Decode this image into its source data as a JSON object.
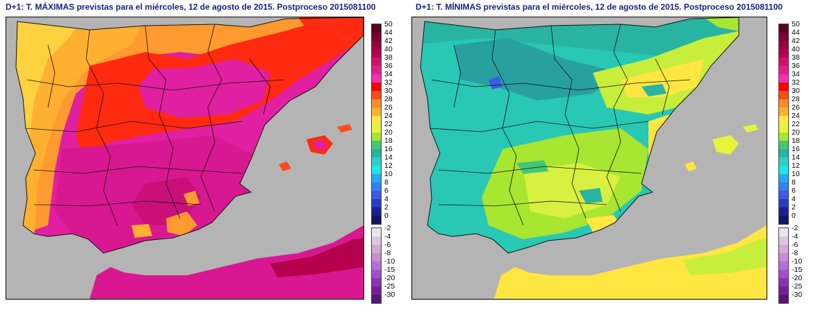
{
  "maps": [
    {
      "title": "D+1: T. MÁXIMAS previstas para el miércoles, 12 de agosto de 2015. Postproceso 2015081100",
      "variable": "maximas"
    },
    {
      "title": "D+1: T. MÍNIMAS previstas para el miércoles, 12 de agosto de 2015. Postproceso 2015081100",
      "variable": "minimas"
    }
  ],
  "legend": {
    "positive": [
      {
        "label": "50",
        "color": "#5a0022"
      },
      {
        "label": "44",
        "color": "#7a0030"
      },
      {
        "label": "42",
        "color": "#9a003c"
      },
      {
        "label": "40",
        "color": "#b4004c"
      },
      {
        "label": "38",
        "color": "#d0106a"
      },
      {
        "label": "36",
        "color": "#e0208a"
      },
      {
        "label": "34",
        "color": "#f030b4"
      },
      {
        "label": "32",
        "color": "#ff0000"
      },
      {
        "label": "30",
        "color": "#ff4a1a"
      },
      {
        "label": "28",
        "color": "#ff8c28"
      },
      {
        "label": "26",
        "color": "#ffb030"
      },
      {
        "label": "24",
        "color": "#ffe640"
      },
      {
        "label": "22",
        "color": "#e6f43c"
      },
      {
        "label": "20",
        "color": "#a8e632"
      },
      {
        "label": "18",
        "color": "#46c873"
      },
      {
        "label": "16",
        "color": "#28b4a0"
      },
      {
        "label": "14",
        "color": "#28d2c8"
      },
      {
        "label": "12",
        "color": "#1ee6e6"
      },
      {
        "label": "10",
        "color": "#28aaf0"
      },
      {
        "label": "8",
        "color": "#3282f0"
      },
      {
        "label": "6",
        "color": "#3c5ae6"
      },
      {
        "label": "4",
        "color": "#283cbe"
      },
      {
        "label": "2",
        "color": "#1e1e96"
      },
      {
        "label": "0",
        "color": "#141464"
      }
    ],
    "negative": [
      {
        "label": "-2",
        "color": "#ebe6eb"
      },
      {
        "label": "-4",
        "color": "#dcc8dc"
      },
      {
        "label": "-6",
        "color": "#d2aad2"
      },
      {
        "label": "-8",
        "color": "#c88cd2"
      },
      {
        "label": "-10",
        "color": "#b46edc"
      },
      {
        "label": "-15",
        "color": "#a050c8"
      },
      {
        "label": "-20",
        "color": "#8c32b4"
      },
      {
        "label": "-25",
        "color": "#781e9b"
      },
      {
        "label": "-30",
        "color": "#5a1478"
      }
    ]
  },
  "colors": {
    "sea": "#b4b4b4",
    "title": "#1a1a8c",
    "borders": "#000000"
  }
}
